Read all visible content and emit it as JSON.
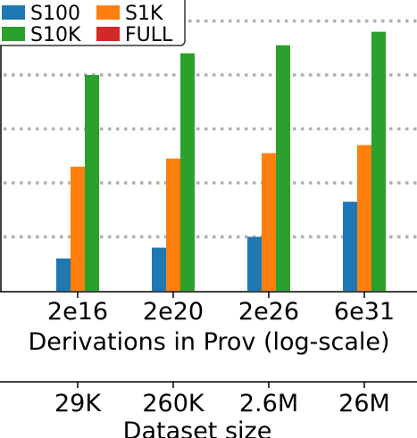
{
  "chart_data": {
    "type": "bar",
    "categories": [
      "2e16",
      "2e20",
      "2e26",
      "6e31"
    ],
    "secondary_categories": [
      "29K",
      "260K",
      "2.6M",
      "26M"
    ],
    "xlabel": "Derivations in Prov (log-scale)",
    "secondary_xlabel": "Dataset size",
    "y_scale": "log",
    "grid": "horizontal dotted",
    "legend_position": "top-left",
    "series": [
      {
        "name": "S100",
        "color": "#1f77b4",
        "values": [
          0.6,
          0.8,
          1.0,
          1.65
        ]
      },
      {
        "name": "S1K",
        "color": "#ff7f0e",
        "values": [
          2.3,
          2.45,
          2.55,
          2.7
        ]
      },
      {
        "name": "S10K",
        "color": "#2ca02c",
        "values": [
          4.0,
          4.4,
          4.55,
          4.8
        ]
      },
      {
        "name": "FULL",
        "color": "#d62728",
        "values": [
          null,
          null,
          null,
          null
        ]
      }
    ]
  }
}
